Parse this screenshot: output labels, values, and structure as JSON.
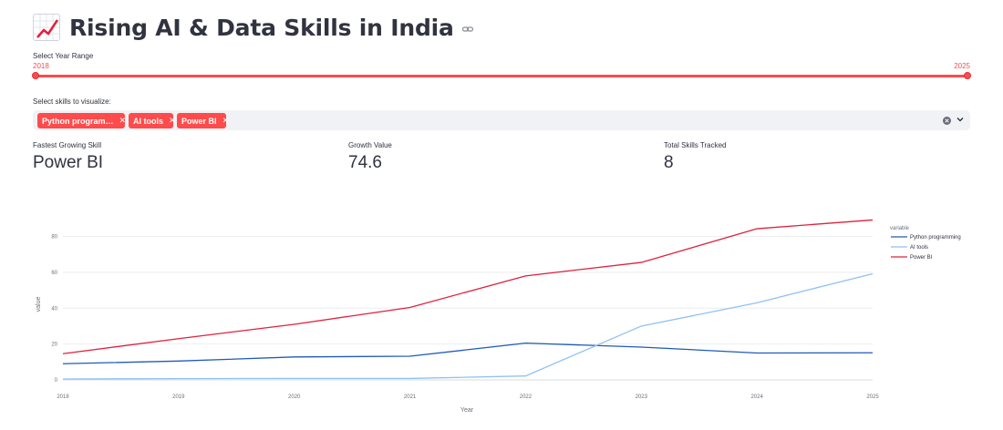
{
  "header": {
    "title": "Rising AI & Data Skills in India",
    "emoji_icon": "chart-increasing-icon",
    "link_icon": "link-icon"
  },
  "year_slider": {
    "label": "Select Year Range",
    "min_value": "2018",
    "max_value": "2025",
    "accent_color": "#ff4b4b"
  },
  "skills_select": {
    "label": "Select skills to visualize:",
    "tags": [
      {
        "label": "Python program…"
      },
      {
        "label": "AI tools"
      },
      {
        "label": "Power BI"
      }
    ]
  },
  "metrics": [
    {
      "label": "Fastest Growing Skill",
      "value": "Power BI"
    },
    {
      "label": "Growth Value",
      "value": "74.6"
    },
    {
      "label": "Total Skills Tracked",
      "value": "8"
    }
  ],
  "chart_data": {
    "type": "line",
    "x": [
      2018,
      2019,
      2020,
      2021,
      2022,
      2023,
      2024,
      2025
    ],
    "xlabel": "Year",
    "ylabel": "value",
    "ylim": [
      0,
      95
    ],
    "yticks": [
      0,
      20,
      40,
      60,
      80
    ],
    "grid": true,
    "legend_title": "variable",
    "legend_position": "right",
    "series": [
      {
        "name": "Python programming",
        "color": "#1f5bb8",
        "values": [
          9,
          10.5,
          12.8,
          13.2,
          20.5,
          18.3,
          15,
          15.1
        ]
      },
      {
        "name": "AI tools",
        "color": "#8fc1f2",
        "values": [
          0.5,
          0.7,
          0.8,
          0.8,
          2.2,
          30,
          43,
          59.2
        ]
      },
      {
        "name": "Power BI",
        "color": "#e0203d",
        "values": [
          14.6,
          23,
          31,
          40.4,
          58,
          65.5,
          84.3,
          89.2
        ]
      }
    ]
  }
}
